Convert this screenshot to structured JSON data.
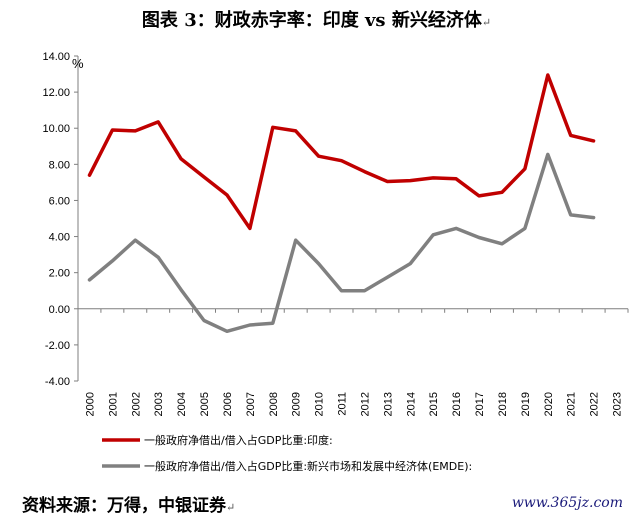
{
  "title": "图表 3：财政赤字率：印度 vs 新兴经济体",
  "paragraph_mark": "↵",
  "source": "资料来源：万得，中银证券",
  "watermark": "www.365jz.com",
  "chart_data": {
    "type": "line",
    "title": "",
    "xlabel": "",
    "ylabel": "%",
    "ylim": [
      -4,
      14
    ],
    "ytick_step": 2,
    "yticks": [
      "-4.00",
      "-2.00",
      "0.00",
      "2.00",
      "4.00",
      "6.00",
      "8.00",
      "10.00",
      "12.00",
      "14.00"
    ],
    "grid": false,
    "legend_position": "bottom",
    "x": [
      "2000",
      "2001",
      "2002",
      "2003",
      "2004",
      "2005",
      "2006",
      "2007",
      "2008",
      "2009",
      "2010",
      "2011",
      "2012",
      "2013",
      "2014",
      "2015",
      "2016",
      "2017",
      "2018",
      "2019",
      "2020",
      "2021",
      "2022",
      "2023"
    ],
    "series": [
      {
        "name": "一般政府净借出/借入占GDP比重:印度:",
        "color": "#c00000",
        "values": [
          7.4,
          9.9,
          9.85,
          10.35,
          8.3,
          7.3,
          6.3,
          4.45,
          10.05,
          9.85,
          8.45,
          8.2,
          7.6,
          7.05,
          7.1,
          7.25,
          7.2,
          6.25,
          6.45,
          7.75,
          12.95,
          9.6,
          9.3,
          null
        ]
      },
      {
        "name": "一般政府净借出/借入占GDP比重:新兴市场和发展中经济体(EMDE):",
        "color": "#808080",
        "values": [
          1.6,
          2.65,
          3.8,
          2.85,
          1.05,
          -0.65,
          -1.25,
          -0.9,
          -0.8,
          3.8,
          2.5,
          1.0,
          1.0,
          1.75,
          2.5,
          4.1,
          4.45,
          3.95,
          3.6,
          4.45,
          8.55,
          5.2,
          5.05,
          null
        ]
      }
    ]
  }
}
